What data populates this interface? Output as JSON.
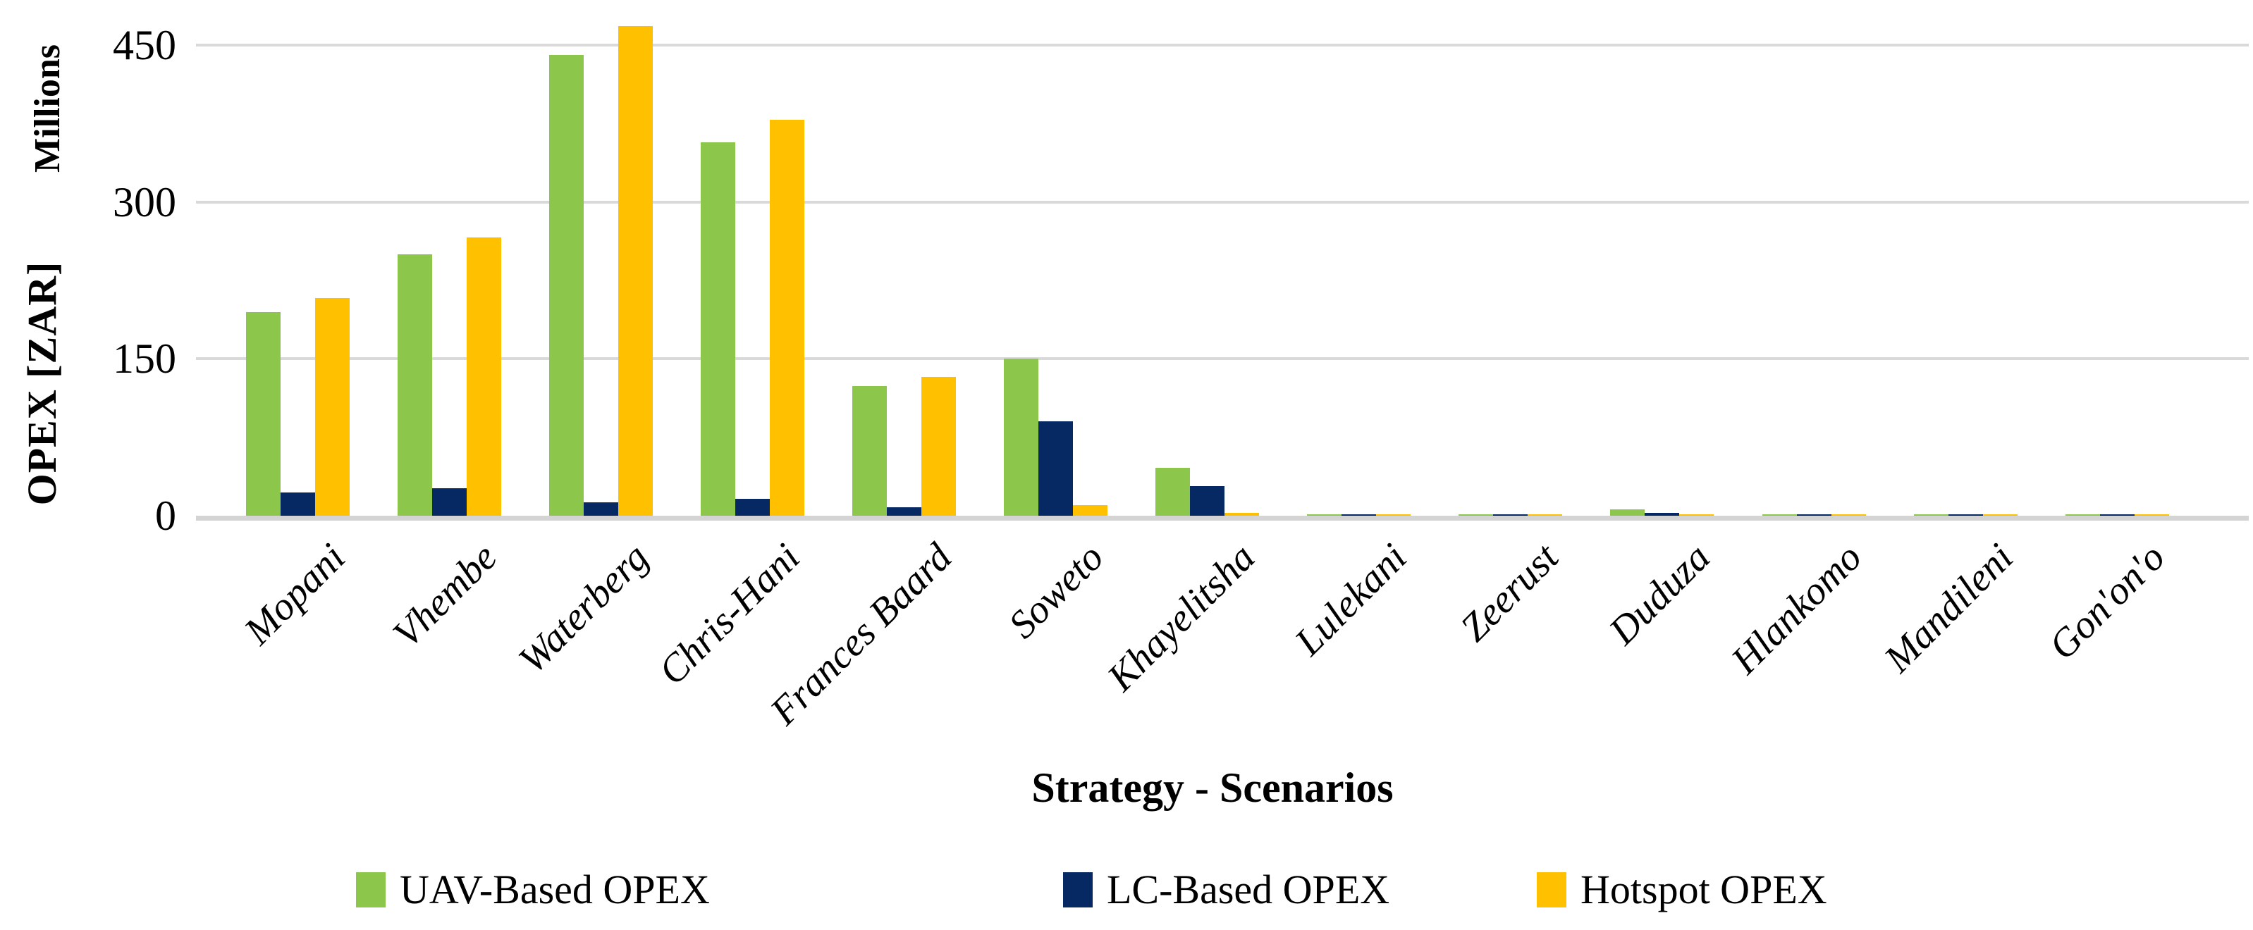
{
  "chart_data": {
    "type": "bar",
    "title": "",
    "y_unit_label": "Millions",
    "ylabel": "OPEX [ZAR]",
    "xlabel": "Strategy - Scenarios",
    "yticks": [
      0,
      150,
      300,
      450
    ],
    "ylim": [
      0,
      485
    ],
    "grid": true,
    "legend_position": "bottom",
    "categories": [
      "Mopani",
      "Vhembe",
      "Waterberg",
      "Chris-Hani",
      "Frances Baard",
      "Soweto",
      "Khayelitsha",
      "Lulekani",
      "Zeerust",
      "Duduza",
      "Hlankomo",
      "Mandileni",
      "Gon'on'o"
    ],
    "series": [
      {
        "name": "UAV-Based OPEX",
        "color": "#8CC74B",
        "values": [
          195,
          250,
          441,
          357,
          124,
          150,
          46,
          1.5,
          1.5,
          6,
          1.5,
          1,
          1
        ]
      },
      {
        "name": "LC-Based OPEX",
        "color": "#062963",
        "values": [
          22,
          26,
          13,
          16,
          8,
          90,
          28,
          1,
          1.5,
          3,
          1.5,
          1,
          1
        ]
      },
      {
        "name": "Hotspot OPEX",
        "color": "#FFC000",
        "values": [
          208,
          266,
          468,
          379,
          133,
          10,
          3,
          1,
          1,
          1,
          1,
          1,
          1
        ]
      }
    ]
  },
  "colors": {
    "gridline": "#D9D9D9",
    "baseline": "#D4D4D4",
    "text": "#000000",
    "background": "#FFFFFF"
  }
}
